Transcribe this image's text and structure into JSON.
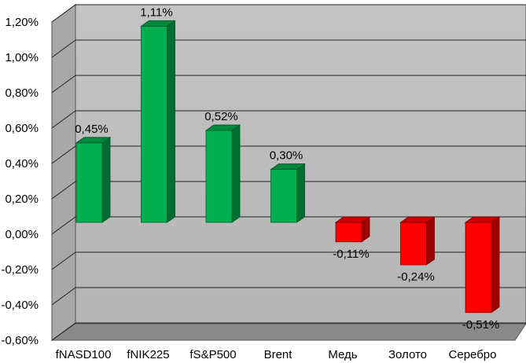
{
  "chart_data": {
    "type": "bar",
    "categories": [
      "fNASD100",
      "fNIK225",
      "fS&P500",
      "Brent",
      "Медь",
      "Золото",
      "Серебро"
    ],
    "values": [
      0.45,
      1.11,
      0.52,
      0.3,
      -0.11,
      -0.24,
      -0.51
    ],
    "value_labels": [
      "0,45%",
      "1,11%",
      "0,52%",
      "0,30%",
      "-0,11%",
      "-0,24%",
      "-0,51%"
    ],
    "y_ticks": [
      1.2,
      1.0,
      0.8,
      0.6,
      0.4,
      0.2,
      0.0,
      -0.2,
      -0.4,
      -0.6
    ],
    "y_tick_labels": [
      "1,20%",
      "1,00%",
      "0,80%",
      "0,60%",
      "0,40%",
      "0,20%",
      "0,00%",
      "-0,20%",
      "-0,40%",
      "-0,60%"
    ],
    "ylim": [
      -0.6,
      1.2
    ],
    "grid": true,
    "title": "",
    "xlabel": "",
    "ylabel": "",
    "colors": {
      "positive": "#00b050",
      "negative": "#ff0000",
      "wall": "#c0c0c0",
      "floor": "#808080"
    }
  }
}
